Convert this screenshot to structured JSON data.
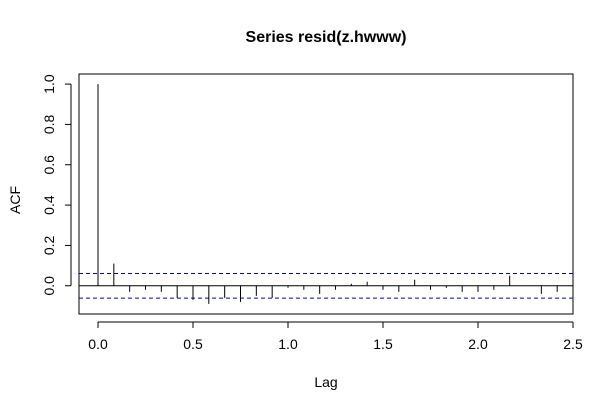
{
  "chart_data": {
    "type": "bar",
    "title": "Series  resid(z.hwww)",
    "xlabel": "Lag",
    "ylabel": "ACF",
    "xlim": [
      -0.1,
      2.5
    ],
    "ylim": [
      -0.14,
      1.05
    ],
    "x_ticks": [
      0.0,
      0.5,
      1.0,
      1.5,
      2.0,
      2.5
    ],
    "x_tick_labels": [
      "0.0",
      "0.5",
      "1.0",
      "1.5",
      "2.0",
      "2.5"
    ],
    "y_ticks": [
      0.0,
      0.2,
      0.4,
      0.6,
      0.8,
      1.0
    ],
    "y_tick_labels": [
      "0.0",
      "0.2",
      "0.4",
      "0.6",
      "0.8",
      "1.0"
    ],
    "confidence_bounds": [
      0.061,
      -0.061
    ],
    "lags": [
      0.0,
      0.0833,
      0.1667,
      0.25,
      0.3333,
      0.4167,
      0.5,
      0.5833,
      0.6667,
      0.75,
      0.8333,
      0.9167,
      1.0,
      1.0833,
      1.1667,
      1.25,
      1.3333,
      1.4167,
      1.5,
      1.5833,
      1.6667,
      1.75,
      1.8333,
      1.9167,
      2.0,
      2.0833,
      2.1667,
      2.25,
      2.3333,
      2.4167
    ],
    "acf": [
      1.0,
      0.11,
      -0.03,
      -0.02,
      -0.03,
      -0.06,
      -0.07,
      -0.09,
      -0.06,
      -0.08,
      -0.05,
      -0.06,
      -0.01,
      -0.02,
      -0.04,
      -0.02,
      0.01,
      0.02,
      -0.02,
      -0.03,
      0.03,
      -0.02,
      -0.01,
      -0.03,
      -0.03,
      -0.02,
      0.05,
      0.0,
      -0.04,
      -0.03
    ]
  }
}
